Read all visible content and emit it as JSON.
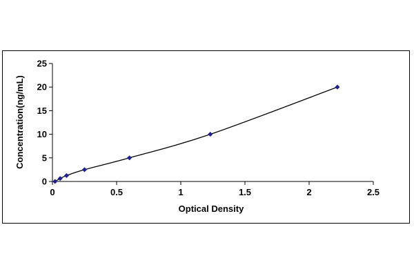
{
  "chart_data": {
    "type": "scatter",
    "title": "",
    "xlabel": "Optical Density",
    "ylabel": "Concentration(ng/mL)",
    "xlim": [
      0,
      2.5
    ],
    "ylim": [
      0,
      25
    ],
    "x_ticks": [
      0,
      0.5,
      1,
      1.5,
      2,
      2.5
    ],
    "x_tick_labels": [
      "0",
      "0.5",
      "1",
      "1.5",
      "2",
      "2.5"
    ],
    "y_ticks": [
      0,
      5,
      10,
      15,
      20,
      25
    ],
    "y_tick_labels": [
      "0",
      "5",
      "10",
      "15",
      "20",
      "25"
    ],
    "grid": false,
    "legend": "none",
    "series": [
      {
        "x": [
          0.02,
          0.06,
          0.11,
          0.25,
          0.6,
          1.23,
          2.22
        ],
        "y": [
          0,
          0.625,
          1.25,
          2.5,
          5,
          10,
          20
        ],
        "marker": "diamond",
        "trendline": "smooth",
        "color": "#1f1f8f"
      }
    ]
  }
}
